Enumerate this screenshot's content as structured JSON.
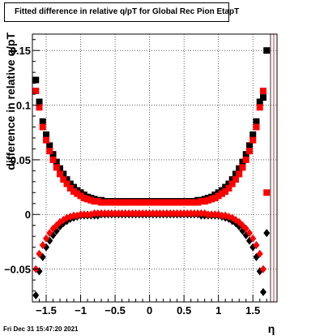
{
  "title": "Fitted difference in relative q/pT for Global Rec Pion EtapT",
  "timestamp": "Fri Dec 31 15:47:20 2021",
  "chart_data": {
    "type": "scatter",
    "title": "Fitted difference in relative q/pT for Global Rec Pion EtapT",
    "xlabel": "η",
    "ylabel": "difference in relative q/pT",
    "xlim": [
      -1.7,
      1.85
    ],
    "ylim": [
      -0.08,
      0.165
    ],
    "xticks": [
      -1.5,
      -1,
      -0.5,
      0,
      0.5,
      1,
      1.5
    ],
    "xtick_labels": [
      "−1.5",
      "−1",
      "−0.5",
      "0",
      "0.5",
      "1",
      "1.5"
    ],
    "yticks": [
      -0.05,
      0,
      0.05,
      0.1,
      0.15
    ],
    "ytick_labels": [
      "−0.05",
      "0",
      "0.05",
      "0.1",
      "0.15"
    ],
    "grid": true,
    "series": [
      {
        "marker": "square",
        "color": "#000000",
        "x": [
          -1.65,
          -1.6,
          -1.55,
          -1.5,
          -1.45,
          -1.4,
          -1.35,
          -1.3,
          -1.25,
          -1.2,
          -1.15,
          -1.1,
          -1.05,
          -1.0,
          -0.95,
          -0.9,
          -0.85,
          -0.8,
          -0.75,
          -0.7,
          -0.65,
          -0.6,
          -0.55,
          -0.5,
          -0.45,
          -0.4,
          -0.35,
          -0.3,
          -0.25,
          -0.2,
          -0.15,
          -0.1,
          -0.05,
          0.0,
          0.05,
          0.1,
          0.15,
          0.2,
          0.25,
          0.3,
          0.35,
          0.4,
          0.45,
          0.5,
          0.55,
          0.6,
          0.65,
          0.7,
          0.75,
          0.8,
          0.85,
          0.9,
          0.95,
          1.0,
          1.05,
          1.1,
          1.15,
          1.2,
          1.25,
          1.3,
          1.35,
          1.4,
          1.45,
          1.5,
          1.55,
          1.6,
          1.65,
          1.7
        ],
        "y": [
          0.123,
          0.103,
          0.085,
          0.073,
          0.063,
          0.055,
          0.048,
          0.042,
          0.037,
          0.032,
          0.028,
          0.025,
          0.022,
          0.02,
          0.018,
          0.016,
          0.015,
          0.014,
          0.013,
          0.013,
          0.012,
          0.012,
          0.012,
          0.012,
          0.012,
          0.012,
          0.012,
          0.012,
          0.012,
          0.012,
          0.012,
          0.012,
          0.012,
          0.012,
          0.012,
          0.012,
          0.012,
          0.012,
          0.012,
          0.012,
          0.012,
          0.012,
          0.012,
          0.012,
          0.012,
          0.012,
          0.012,
          0.013,
          0.013,
          0.014,
          0.015,
          0.016,
          0.018,
          0.02,
          0.022,
          0.025,
          0.028,
          0.032,
          0.037,
          0.042,
          0.048,
          0.055,
          0.063,
          0.073,
          0.085,
          0.103,
          0.107,
          0.15
        ]
      },
      {
        "marker": "square",
        "color": "#ff0000",
        "x": [
          -1.65,
          -1.6,
          -1.55,
          -1.5,
          -1.45,
          -1.4,
          -1.35,
          -1.3,
          -1.25,
          -1.2,
          -1.15,
          -1.1,
          -1.05,
          -1.0,
          -0.95,
          -0.9,
          -0.85,
          -0.8,
          -0.75,
          -0.7,
          -0.65,
          -0.6,
          -0.55,
          -0.5,
          -0.45,
          -0.4,
          -0.35,
          -0.3,
          -0.25,
          -0.2,
          -0.15,
          -0.1,
          -0.05,
          0.0,
          0.05,
          0.1,
          0.15,
          0.2,
          0.25,
          0.3,
          0.35,
          0.4,
          0.45,
          0.5,
          0.55,
          0.6,
          0.65,
          0.7,
          0.75,
          0.8,
          0.85,
          0.9,
          0.95,
          1.0,
          1.05,
          1.1,
          1.15,
          1.2,
          1.25,
          1.3,
          1.35,
          1.4,
          1.45,
          1.5,
          1.55,
          1.6,
          1.65,
          1.7
        ],
        "y": [
          0.113,
          0.098,
          0.08,
          0.068,
          0.058,
          0.05,
          0.043,
          0.037,
          0.032,
          0.028,
          0.024,
          0.021,
          0.019,
          0.017,
          0.015,
          0.014,
          0.013,
          0.012,
          0.012,
          0.011,
          0.011,
          0.011,
          0.011,
          0.011,
          0.011,
          0.011,
          0.011,
          0.011,
          0.011,
          0.011,
          0.011,
          0.011,
          0.011,
          0.011,
          0.011,
          0.011,
          0.011,
          0.011,
          0.011,
          0.011,
          0.011,
          0.011,
          0.011,
          0.011,
          0.011,
          0.011,
          0.011,
          0.011,
          0.012,
          0.012,
          0.013,
          0.014,
          0.015,
          0.017,
          0.019,
          0.021,
          0.024,
          0.028,
          0.032,
          0.037,
          0.043,
          0.05,
          0.058,
          0.068,
          0.08,
          0.098,
          0.113,
          0.02
        ]
      },
      {
        "marker": "diamond",
        "color": "#000000",
        "x": [
          -1.65,
          -1.6,
          -1.55,
          -1.5,
          -1.45,
          -1.4,
          -1.35,
          -1.3,
          -1.25,
          -1.2,
          -1.15,
          -1.1,
          -1.05,
          -1.0,
          -0.95,
          -0.9,
          -0.85,
          -0.8,
          -0.75,
          -0.7,
          -0.65,
          -0.6,
          -0.55,
          -0.5,
          -0.45,
          -0.4,
          -0.35,
          -0.3,
          -0.25,
          -0.2,
          -0.15,
          -0.1,
          -0.05,
          0.0,
          0.05,
          0.1,
          0.15,
          0.2,
          0.25,
          0.3,
          0.35,
          0.4,
          0.45,
          0.5,
          0.55,
          0.6,
          0.65,
          0.7,
          0.75,
          0.8,
          0.85,
          0.9,
          0.95,
          1.0,
          1.05,
          1.1,
          1.15,
          1.2,
          1.25,
          1.3,
          1.35,
          1.4,
          1.45,
          1.5,
          1.55,
          1.6,
          1.65,
          1.7
        ],
        "y": [
          -0.074,
          -0.052,
          -0.039,
          -0.03,
          -0.024,
          -0.019,
          -0.015,
          -0.011,
          -0.008,
          -0.006,
          -0.004,
          -0.003,
          -0.002,
          -0.001,
          -0.001,
          -0.001,
          -0.001,
          -0.001,
          -0.001,
          0.0,
          0.0,
          0.0,
          0.0,
          0.0,
          0.0,
          0.0,
          0.0,
          0.0,
          0.0,
          0.0,
          0.0,
          0.0,
          0.0,
          0.0,
          0.0,
          0.0,
          0.0,
          0.0,
          0.0,
          0.0,
          0.0,
          0.0,
          0.0,
          0.0,
          0.0,
          0.0,
          0.0,
          0.0,
          -0.001,
          -0.001,
          -0.001,
          -0.001,
          -0.001,
          -0.001,
          -0.002,
          -0.003,
          -0.004,
          -0.006,
          -0.008,
          -0.011,
          -0.015,
          -0.019,
          -0.024,
          -0.03,
          -0.039,
          -0.052,
          -0.071,
          -0.017
        ]
      },
      {
        "marker": "diamond",
        "color": "#ff0000",
        "x": [
          -1.65,
          -1.6,
          -1.55,
          -1.5,
          -1.45,
          -1.4,
          -1.35,
          -1.3,
          -1.25,
          -1.2,
          -1.15,
          -1.1,
          -1.05,
          -1.0,
          -0.95,
          -0.9,
          -0.85,
          -0.8,
          -0.75,
          -0.7,
          -0.65,
          -0.6,
          -0.55,
          -0.5,
          -0.45,
          -0.4,
          -0.35,
          -0.3,
          -0.25,
          -0.2,
          -0.15,
          -0.1,
          -0.05,
          0.0,
          0.05,
          0.1,
          0.15,
          0.2,
          0.25,
          0.3,
          0.35,
          0.4,
          0.45,
          0.5,
          0.55,
          0.6,
          0.65,
          0.7,
          0.75,
          0.8,
          0.85,
          0.9,
          0.95,
          1.0,
          1.05,
          1.1,
          1.15,
          1.2,
          1.25,
          1.3,
          1.35,
          1.4,
          1.45,
          1.5,
          1.55,
          1.6,
          1.65
        ],
        "y": [
          -0.05,
          -0.036,
          -0.028,
          -0.022,
          -0.017,
          -0.013,
          -0.01,
          -0.007,
          -0.005,
          -0.003,
          -0.002,
          -0.001,
          -0.001,
          0.0,
          0.0,
          0.0,
          0.0,
          0.001,
          0.001,
          0.001,
          0.001,
          0.001,
          0.001,
          0.001,
          0.001,
          0.001,
          0.001,
          0.001,
          0.001,
          0.001,
          0.001,
          0.001,
          0.001,
          0.001,
          0.001,
          0.001,
          0.001,
          0.001,
          0.001,
          0.001,
          0.001,
          0.001,
          0.001,
          0.001,
          0.001,
          0.001,
          0.001,
          0.001,
          0.001,
          0.001,
          0.0,
          0.0,
          0.0,
          0.0,
          -0.001,
          -0.001,
          -0.002,
          -0.003,
          -0.005,
          -0.007,
          -0.01,
          -0.013,
          -0.017,
          -0.022,
          -0.028,
          -0.036,
          -0.05
        ]
      }
    ]
  }
}
